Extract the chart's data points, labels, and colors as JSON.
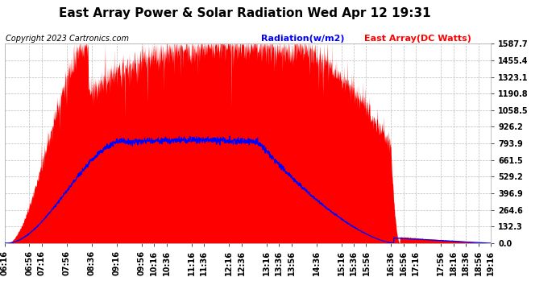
{
  "title": "East Array Power & Solar Radiation Wed Apr 12 19:31",
  "copyright": "Copyright 2023 Cartronics.com",
  "legend_radiation": "Radiation(w/m2)",
  "legend_array": "East Array(DC Watts)",
  "legend_radiation_color": "blue",
  "legend_array_color": "red",
  "y_max": 1587.7,
  "y_min": 0.0,
  "y_ticks": [
    0.0,
    132.3,
    264.6,
    396.9,
    529.2,
    661.5,
    793.9,
    926.2,
    1058.5,
    1190.8,
    1323.1,
    1455.4,
    1587.7
  ],
  "background_color": "#ffffff",
  "plot_background": "#ffffff",
  "grid_color": "#bbbbbb",
  "title_fontsize": 11,
  "copyright_fontsize": 7,
  "tick_fontsize": 7,
  "legend_fontsize": 8,
  "x_labels": [
    "06:16",
    "06:56",
    "07:16",
    "07:56",
    "08:36",
    "09:16",
    "09:56",
    "10:16",
    "10:36",
    "11:16",
    "11:36",
    "12:16",
    "12:36",
    "13:16",
    "13:36",
    "13:56",
    "14:36",
    "15:16",
    "15:36",
    "15:56",
    "16:36",
    "16:56",
    "17:16",
    "17:56",
    "18:16",
    "18:36",
    "18:56",
    "19:16"
  ]
}
